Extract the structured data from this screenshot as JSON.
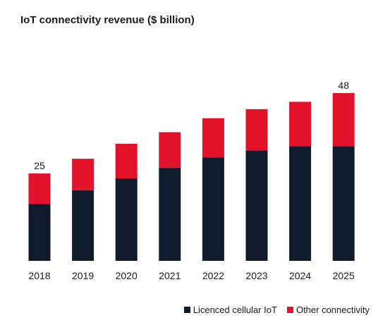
{
  "chart_data": {
    "type": "bar",
    "stacked": true,
    "title": "IoT connectivity revenue ($ billion)",
    "categories": [
      "2018",
      "2019",
      "2020",
      "2021",
      "2022",
      "2023",
      "2024",
      "2025"
    ],
    "series": [
      {
        "name": "Licenced cellular IoT",
        "color": "#0f1b2d",
        "values": [
          16.3,
          20.2,
          23.6,
          26.6,
          29.6,
          31.6,
          32.8,
          32.8
        ]
      },
      {
        "name": "Other connectivity",
        "color": "#e3122b",
        "values": [
          8.7,
          9.0,
          9.9,
          10.2,
          11.2,
          11.8,
          12.7,
          15.2
        ]
      }
    ],
    "totals_labels": [
      {
        "category": "2018",
        "text": "25"
      },
      {
        "category": "2025",
        "text": "48"
      }
    ],
    "ylim": [
      0,
      48
    ],
    "grid": false,
    "legend_position": "bottom-right"
  }
}
